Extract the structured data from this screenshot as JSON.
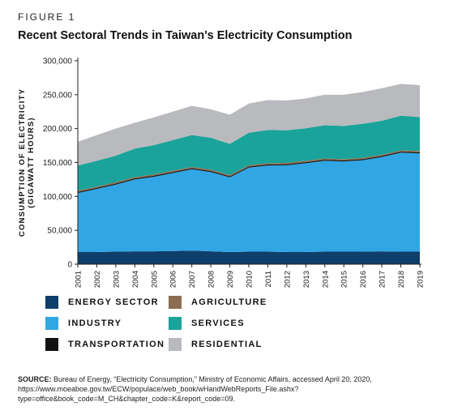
{
  "figure_label": "FIGURE 1",
  "chart_data": {
    "type": "area",
    "title": "Recent Sectoral Trends in Taiwan's Electricity Consumption",
    "ylabel_line1": "CONSUMPTION OF ELECTRICITY",
    "ylabel_line2": "(GIGAWATT HOURS)",
    "xlabel": "",
    "ylim": [
      0,
      300000
    ],
    "y_ticks": [
      "0",
      "50,000",
      "100,000",
      "150,000",
      "200,000",
      "250,000",
      "300,000"
    ],
    "stacked": true,
    "x": [
      "2001",
      "2002",
      "2003",
      "2004",
      "2005",
      "2006",
      "2007",
      "2008",
      "2009",
      "2010",
      "2011",
      "2012",
      "2013",
      "2014",
      "2015",
      "2016",
      "2017",
      "2018",
      "2019"
    ],
    "series": [
      {
        "name": "ENERGY SECTOR",
        "color": "#0e3f6b",
        "values": [
          18000,
          18000,
          18500,
          19000,
          19000,
          19500,
          20000,
          19000,
          18000,
          18500,
          18500,
          18000,
          18000,
          18500,
          18500,
          18500,
          19000,
          18500,
          18500
        ]
      },
      {
        "name": "INDUSTRY",
        "color": "#31a6e4",
        "values": [
          87000,
          93000,
          99000,
          106000,
          110000,
          115000,
          120000,
          117000,
          110000,
          124000,
          127000,
          128000,
          131000,
          134000,
          133000,
          135000,
          139000,
          146000,
          145000
        ]
      },
      {
        "name": "TRANSPORTATION",
        "color": "#111111",
        "values": [
          1500,
          1500,
          1500,
          1500,
          1500,
          1500,
          1500,
          1500,
          1500,
          1500,
          1500,
          1500,
          1500,
          1500,
          1500,
          1500,
          1500,
          1500,
          1500
        ]
      },
      {
        "name": "AGRICULTURE",
        "color": "#8c6d52",
        "values": [
          2000,
          2000,
          2000,
          2000,
          2000,
          2000,
          2000,
          2000,
          2000,
          2000,
          2000,
          2000,
          2000,
          2000,
          2000,
          2000,
          2000,
          2000,
          2000
        ]
      },
      {
        "name": "SERVICES",
        "color": "#1aa39a",
        "values": [
          37000,
          38000,
          39000,
          42000,
          43000,
          45000,
          47000,
          47000,
          46000,
          48000,
          49000,
          48000,
          48000,
          49000,
          49000,
          50000,
          50000,
          51000,
          50000
        ]
      },
      {
        "name": "RESIDENTIAL",
        "color": "#b9babe",
        "values": [
          35000,
          38000,
          40000,
          38000,
          41000,
          42000,
          43000,
          42000,
          43000,
          43000,
          44000,
          44000,
          44000,
          45000,
          46000,
          47000,
          48000,
          47000,
          47000
        ]
      }
    ],
    "legend_placement": "bottom",
    "grid": false
  },
  "source": {
    "label": "SOURCE:",
    "text": " Bureau of Energy, “Electricity Consumption,” Ministry of Economic Affairs, accessed April 20, 2020, https://www.moeaboe.gov.tw/ECW/populace/web_book/wHandWebReports_File.ashx?type=office&book_code=M_CH&chapter_code=K&report_code=09."
  }
}
